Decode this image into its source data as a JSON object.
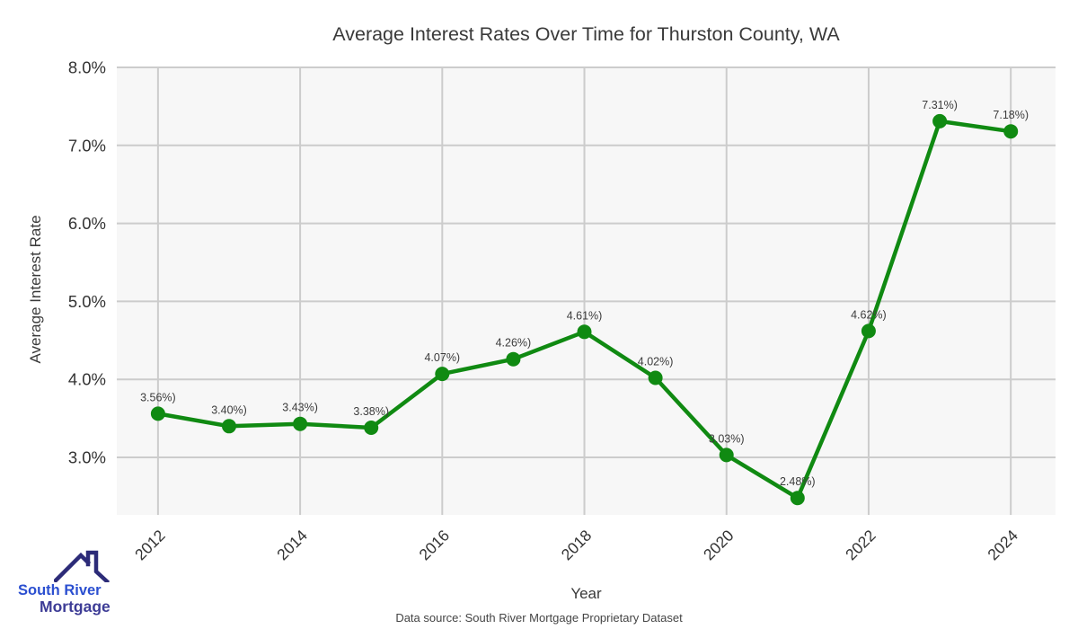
{
  "header": {
    "title": "Average Interest Rates Over Time for Thurston County, WA"
  },
  "footer": {
    "source": "Data source: South River Mortgage Proprietary Dataset"
  },
  "logo": {
    "line1": "South River",
    "line2": "Mortgage",
    "roof_icon": "house-roof-icon",
    "colors": {
      "line1": "#2b4fd0",
      "line2": "#3d3c96",
      "roof": "#2c2b78"
    }
  },
  "chart_data": {
    "type": "line",
    "title": "Average Interest Rates Over Time for Thurston County, WA",
    "xlabel": "Year",
    "ylabel": "Average Interest Rate",
    "x": [
      2012,
      2013,
      2014,
      2015,
      2016,
      2017,
      2018,
      2019,
      2020,
      2021,
      2022,
      2023,
      2024
    ],
    "series": [
      {
        "name": "Average Interest Rate",
        "values": [
          3.56,
          3.4,
          3.43,
          3.38,
          4.07,
          4.26,
          4.61,
          4.02,
          3.03,
          2.48,
          4.62,
          7.31,
          7.18
        ],
        "point_labels": [
          "3.56%)",
          "3.40%)",
          "3.43%)",
          "3.38%)",
          "4.07%)",
          "4.26%)",
          "4.61%)",
          "4.02%)",
          "3.03%)",
          "2.48%)",
          "4.62%)",
          "7.31%)",
          "7.18%)"
        ]
      }
    ],
    "xticks": [
      2012,
      2014,
      2016,
      2018,
      2020,
      2022,
      2024
    ],
    "xtick_labels": [
      "2012",
      "2014",
      "2016",
      "2018",
      "2020",
      "2022",
      "2024"
    ],
    "yticks": [
      3.0,
      4.0,
      5.0,
      6.0,
      7.0,
      8.0
    ],
    "ytick_labels": [
      "3.0%",
      "4.0%",
      "5.0%",
      "6.0%",
      "7.0%",
      "8.0%"
    ],
    "xlim": [
      2011.42,
      2024.63
    ],
    "ylim": [
      2.263,
      8.0
    ],
    "grid": true,
    "legend": "none",
    "colors": {
      "line": "#108a12",
      "marker": "#108a12",
      "grid": "#cccccc",
      "plot_bg": "#f7f7f7",
      "tick_text": "#333333",
      "label_text": "#3c3c3c"
    }
  }
}
